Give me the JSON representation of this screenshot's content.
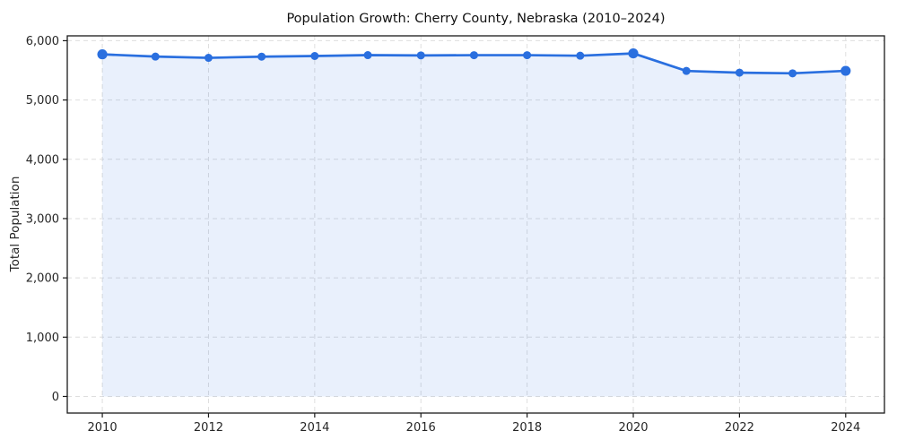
{
  "chart_data": {
    "type": "area",
    "title": "Population Growth: Cherry County, Nebraska (2010–2024)",
    "xlabel": "",
    "ylabel": "Total Population",
    "x": [
      2010,
      2011,
      2012,
      2013,
      2014,
      2015,
      2016,
      2017,
      2018,
      2019,
      2020,
      2021,
      2022,
      2023,
      2024
    ],
    "values": [
      5770,
      5732,
      5711,
      5731,
      5742,
      5757,
      5752,
      5756,
      5756,
      5747,
      5786,
      5490,
      5461,
      5450,
      5492
    ],
    "xlim": [
      2009.34,
      2024.73
    ],
    "ylim": [
      -280,
      6082
    ],
    "xticks": {
      "values": [
        2010,
        2012,
        2014,
        2016,
        2018,
        2020,
        2022,
        2024
      ],
      "labels": [
        "2010",
        "2012",
        "2014",
        "2016",
        "2018",
        "2020",
        "2022",
        "2024"
      ]
    },
    "yticks": {
      "values": [
        0,
        1000,
        2000,
        3000,
        4000,
        5000,
        6000
      ],
      "labels": [
        "0",
        "1,000",
        "2,000",
        "3,000",
        "4,000",
        "5,000",
        "6,000"
      ]
    },
    "grid": "dashed-both-axes",
    "legend": "none",
    "highlight_years": [
      2010,
      2020,
      2024
    ],
    "style": {
      "line_color": "#2a6fdf",
      "fill_color": "rgba(42,111,223,0.10)",
      "grid_color": "#dedede",
      "spine_color": "#1a1a1a",
      "text_color": "#262626",
      "line_width": 2.7,
      "marker_radius": 4.5,
      "highlight_marker_radius": 5.6,
      "tick_font_size": 13
    }
  }
}
